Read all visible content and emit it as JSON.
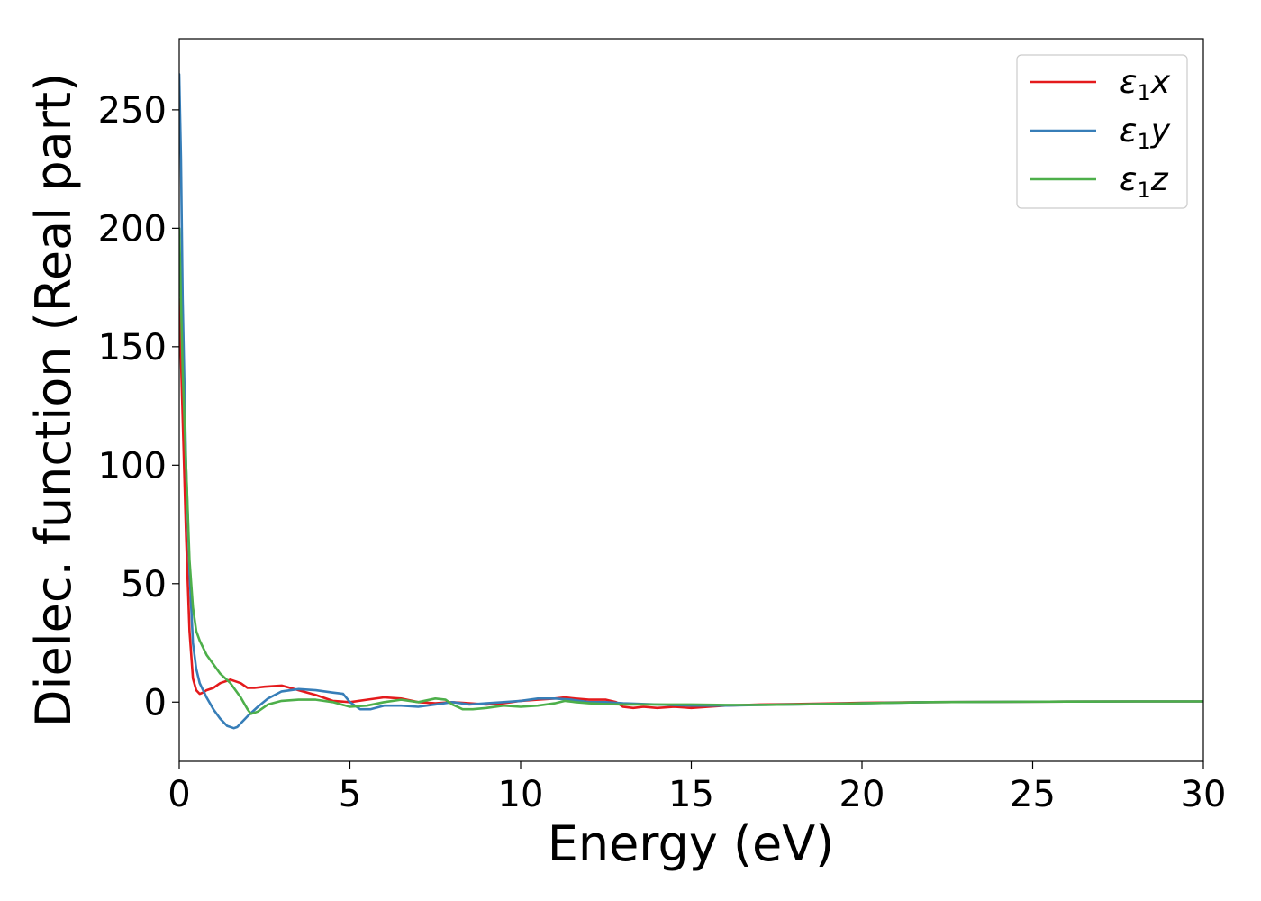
{
  "chart_data": {
    "type": "line",
    "title": "",
    "xlabel": "Energy (eV)",
    "ylabel": "Dielec. function (Real part)",
    "xlim": [
      0,
      30
    ],
    "ylim": [
      -25,
      280
    ],
    "xticks": [
      0,
      5,
      10,
      15,
      20,
      25,
      30
    ],
    "yticks": [
      0,
      50,
      100,
      150,
      200,
      250
    ],
    "grid": false,
    "legend_position": "top-right",
    "series": [
      {
        "name": "ε1x",
        "legend_symbol": "ε",
        "legend_sub": "1",
        "legend_var": "x",
        "color": "#e41a1c",
        "x": [
          0,
          0.1,
          0.2,
          0.3,
          0.4,
          0.5,
          0.6,
          0.7,
          0.8,
          1.0,
          1.2,
          1.5,
          1.8,
          2.0,
          2.2,
          2.5,
          3.0,
          3.5,
          4.0,
          4.5,
          5.0,
          5.5,
          6.0,
          6.5,
          7.0,
          7.5,
          8.0,
          8.5,
          9.0,
          9.5,
          10.0,
          10.5,
          11.0,
          11.3,
          11.6,
          12.0,
          12.5,
          12.8,
          13.0,
          13.3,
          13.6,
          14.0,
          14.5,
          15.0,
          15.5,
          16.0,
          17.0,
          18.0,
          19.0,
          20.0,
          22.0,
          24.0,
          26.0,
          28.0,
          30.0
        ],
        "y": [
          170,
          120,
          70,
          30,
          10,
          5,
          3.5,
          4,
          5,
          6,
          8,
          9.5,
          8,
          6,
          6,
          6.5,
          7,
          5,
          3,
          0.5,
          0,
          1,
          2,
          1.5,
          0,
          -0.5,
          0,
          -0.5,
          -1,
          -0.5,
          0.5,
          1,
          1.5,
          2,
          1.5,
          1,
          1,
          0,
          -2,
          -2.5,
          -2,
          -2.5,
          -2,
          -2.5,
          -2,
          -1.5,
          -1,
          -0.8,
          -0.6,
          -0.3,
          0,
          0.1,
          0.2,
          0.3,
          0.3
        ]
      },
      {
        "name": "ε1y",
        "legend_symbol": "ε",
        "legend_sub": "1",
        "legend_var": "y",
        "color": "#377eb8",
        "x": [
          0,
          0.05,
          0.1,
          0.2,
          0.3,
          0.4,
          0.5,
          0.6,
          0.8,
          1.0,
          1.2,
          1.4,
          1.6,
          1.7,
          1.8,
          2.0,
          2.3,
          2.6,
          3.0,
          3.5,
          4.0,
          4.5,
          4.8,
          5.0,
          5.3,
          5.6,
          6.0,
          6.5,
          7.0,
          7.5,
          8.0,
          8.5,
          9.0,
          9.5,
          10.0,
          10.5,
          11.0,
          11.5,
          12.0,
          12.5,
          13.0,
          14.0,
          15.0,
          16.0,
          17.0,
          18.0,
          19.0,
          20.0,
          22.0,
          24.0,
          26.0,
          28.0,
          30.0
        ],
        "y": [
          265,
          230,
          170,
          100,
          55,
          25,
          14,
          8,
          2,
          -3,
          -7,
          -10,
          -11,
          -10.5,
          -9,
          -6,
          -2,
          1.5,
          4.5,
          5.5,
          5,
          4,
          3.5,
          0,
          -3,
          -3,
          -1.5,
          -1.5,
          -2,
          -1,
          0,
          -1,
          -0.5,
          0,
          0.5,
          1.5,
          1.5,
          1,
          0,
          0,
          -0.5,
          -1,
          -1.5,
          -1.5,
          -1.2,
          -1,
          -0.8,
          -0.5,
          0,
          0.1,
          0.2,
          0.3,
          0.3
        ]
      },
      {
        "name": "ε1z",
        "legend_symbol": "ε",
        "legend_sub": "1",
        "legend_var": "z",
        "color": "#4daf4a",
        "x": [
          0,
          0.05,
          0.1,
          0.2,
          0.3,
          0.4,
          0.5,
          0.6,
          0.8,
          1.0,
          1.2,
          1.5,
          1.8,
          2.0,
          2.1,
          2.3,
          2.6,
          3.0,
          3.5,
          4.0,
          4.5,
          5.0,
          5.5,
          6.0,
          6.5,
          7.0,
          7.5,
          7.8,
          8.0,
          8.3,
          8.6,
          9.0,
          9.5,
          10.0,
          10.5,
          11.0,
          11.3,
          11.6,
          12.0,
          12.5,
          13.0,
          14.0,
          15.0,
          16.0,
          17.0,
          18.0,
          19.0,
          20.0,
          22.0,
          24.0,
          26.0,
          28.0,
          30.0
        ],
        "y": [
          200,
          170,
          140,
          100,
          60,
          40,
          30,
          26,
          20,
          16,
          12,
          8,
          2,
          -3,
          -5,
          -4,
          -1,
          0.5,
          1,
          1,
          0,
          -2,
          -1.5,
          0,
          1,
          0,
          1.5,
          1,
          -1,
          -3,
          -3,
          -2.5,
          -1.5,
          -2,
          -1.5,
          -0.5,
          0.5,
          0,
          -0.5,
          -0.8,
          -1,
          -1,
          -1,
          -1.2,
          -1.2,
          -1,
          -0.8,
          -0.5,
          0,
          0.1,
          0.2,
          0.3,
          0.3
        ]
      }
    ]
  }
}
